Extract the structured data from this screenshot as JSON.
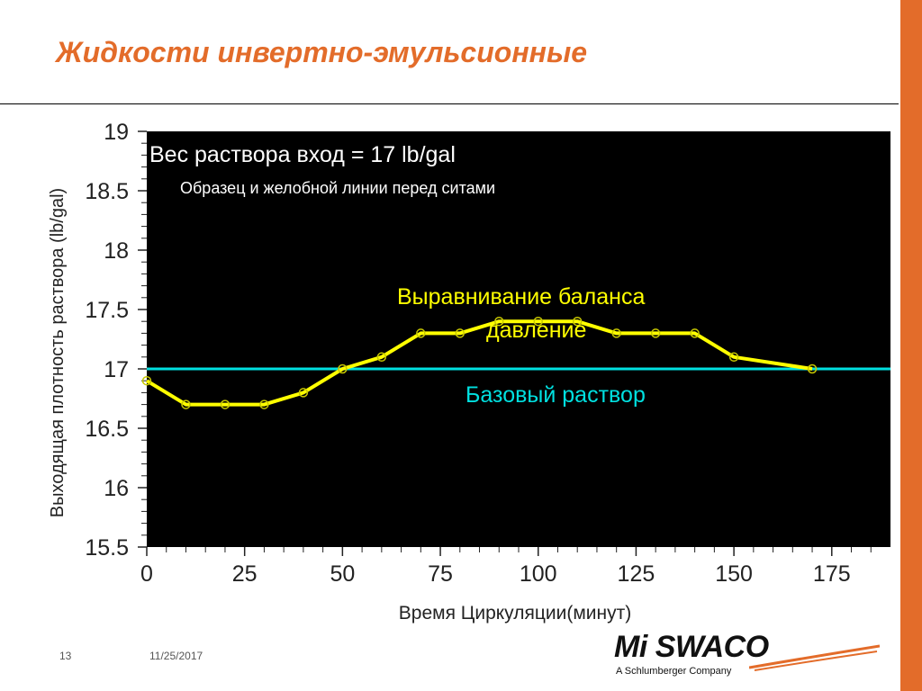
{
  "slide": {
    "title": "Жидкости инвертно-эмульсионные",
    "page_number": "13",
    "date": "11/25/2017",
    "accent_color": "#e36c2a"
  },
  "logo": {
    "name": "Mi SWACO",
    "tagline": "A Schlumberger Company"
  },
  "chart_data": {
    "type": "line",
    "title": "",
    "xlabel": "Время Циркуляции(минут)",
    "ylabel": "Выходящая плотность раствора (lb/gal)",
    "xlim": [
      0,
      190
    ],
    "ylim": [
      15.5,
      19
    ],
    "x_ticks": [
      0,
      25,
      50,
      75,
      100,
      125,
      150,
      175
    ],
    "y_ticks": [
      15.5,
      16,
      16.5,
      17,
      17.5,
      18,
      18.5,
      19
    ],
    "background": "#000000",
    "annotations": [
      {
        "text": "Вес раствора вход = 17 lb/gal",
        "color": "#ffffff"
      },
      {
        "text": "Образец и желобной линии перед ситами",
        "color": "#ffffff"
      },
      {
        "text": "Выравнивание баланса",
        "color": "#ffff00"
      },
      {
        "text": "давление",
        "color": "#ffff00"
      },
      {
        "text": "Базовый раствор",
        "color": "#00e0e0"
      }
    ],
    "series": [
      {
        "name": "Выходящая плотность",
        "color": "#ffff00",
        "x": [
          0,
          10,
          20,
          30,
          40,
          50,
          60,
          70,
          80,
          90,
          100,
          110,
          120,
          130,
          140,
          150,
          170
        ],
        "y": [
          16.9,
          16.7,
          16.7,
          16.7,
          16.8,
          17.0,
          17.1,
          17.3,
          17.3,
          17.4,
          17.4,
          17.4,
          17.3,
          17.3,
          17.3,
          17.1,
          17.0
        ]
      },
      {
        "name": "Базовый раствор",
        "color": "#00e0e0",
        "x": [
          0,
          190
        ],
        "y": [
          17.0,
          17.0
        ]
      }
    ]
  }
}
